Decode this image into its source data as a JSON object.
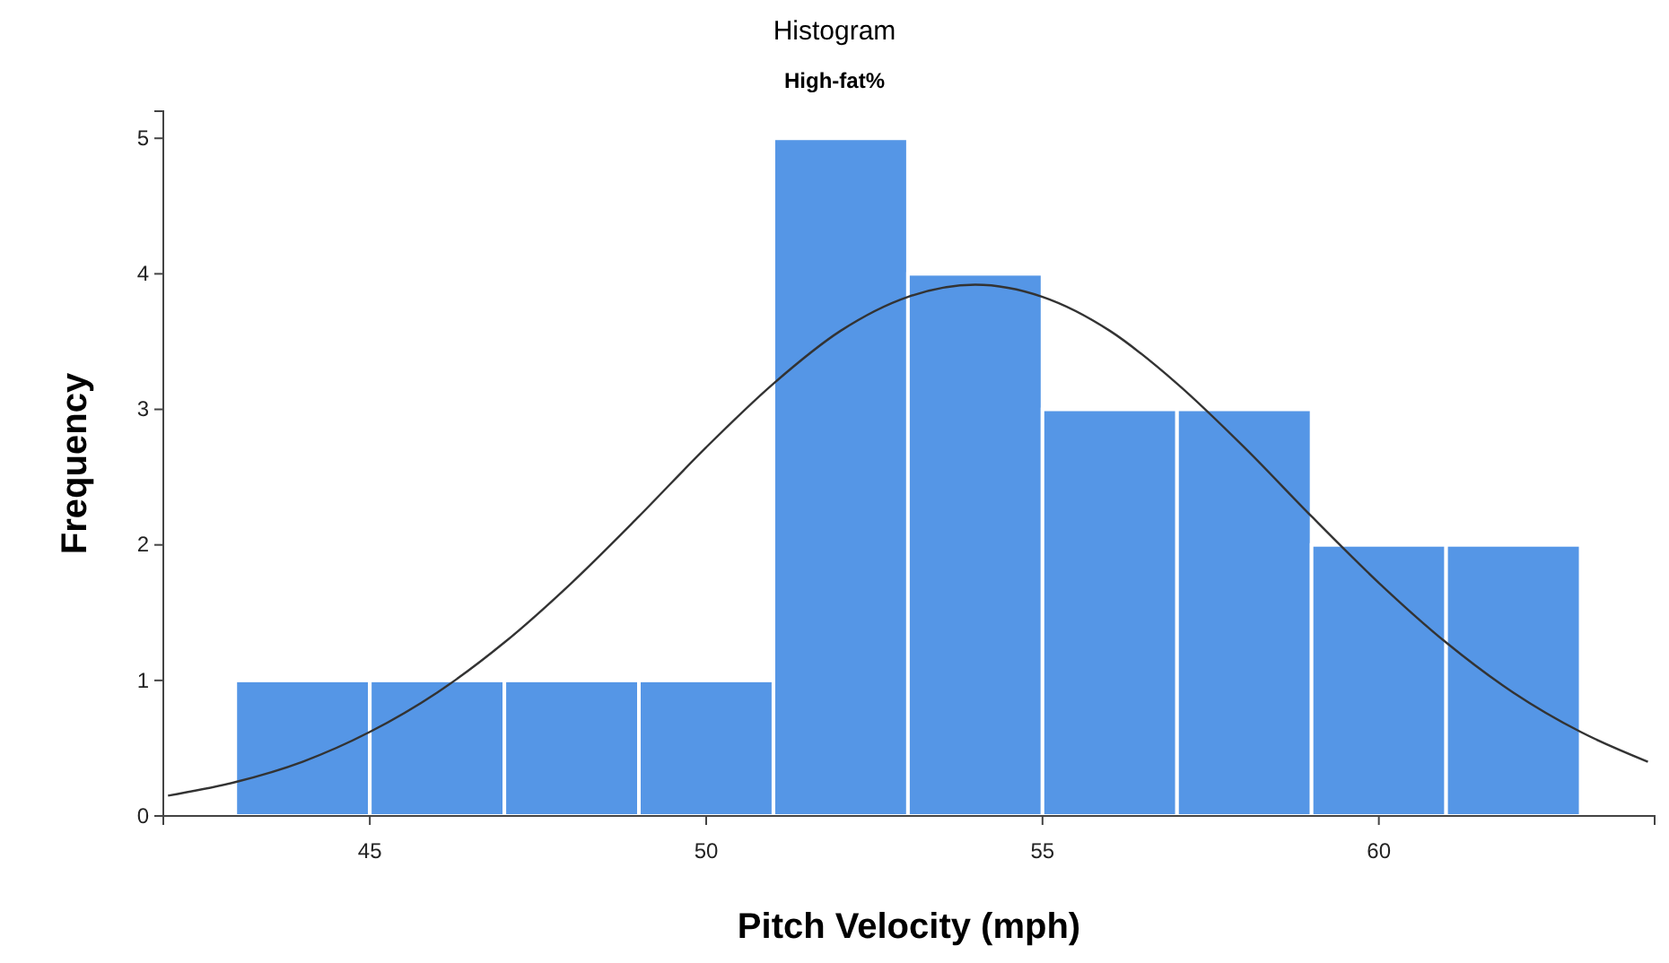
{
  "chart_data": {
    "type": "histogram",
    "title": "Histogram",
    "subtitle": "High-fat%",
    "xlabel": "Pitch Velocity (mph)",
    "ylabel": "Frequency",
    "bins": [
      43,
      45,
      47,
      49,
      51,
      53,
      55,
      57,
      59,
      61,
      63
    ],
    "values": [
      1,
      1,
      1,
      1,
      5,
      4,
      3,
      3,
      2,
      2
    ],
    "color": "#5596e6",
    "xlim": [
      41.93,
      64.1
    ],
    "xticks": [
      45,
      50,
      55,
      60
    ],
    "ylim": [
      0,
      5.2
    ],
    "yticks": [
      0,
      1,
      2,
      3,
      4,
      5
    ],
    "series": [
      {
        "type": "line",
        "color": "#333333",
        "x": [
          42,
          43,
          44,
          45,
          46,
          47,
          48,
          49,
          50,
          51,
          52,
          53,
          54,
          55,
          56,
          57,
          58,
          59,
          60,
          61,
          62,
          63,
          64
        ],
        "values": [
          0.15,
          0.25,
          0.4,
          0.62,
          0.91,
          1.28,
          1.72,
          2.21,
          2.72,
          3.19,
          3.58,
          3.83,
          3.92,
          3.83,
          3.58,
          3.19,
          2.72,
          2.21,
          1.72,
          1.28,
          0.91,
          0.62,
          0.4
        ]
      }
    ]
  }
}
